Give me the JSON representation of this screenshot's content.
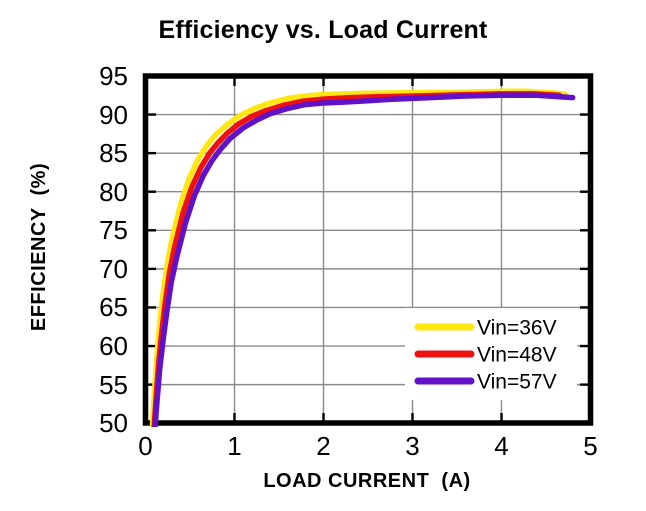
{
  "title": "Efficiency vs. Load Current",
  "colors": {
    "background": "#FFFFFF",
    "frame": "#000000",
    "grid": "#8A8A8A",
    "tick": "#000000",
    "text": "#000000",
    "legend_bg": "#FFFFFF"
  },
  "chart_data": {
    "type": "line",
    "title": "Efficiency vs. Load Current",
    "xlabel": "LOAD CURRENT  (A)",
    "ylabel": "EFFICIENCY  (%)",
    "xlim": [
      0,
      5
    ],
    "ylim": [
      50,
      95
    ],
    "xticks": [
      0,
      1,
      2,
      3,
      4,
      5
    ],
    "yticks": [
      95,
      90,
      85,
      80,
      75,
      70,
      65,
      60,
      55,
      50
    ],
    "grid": true,
    "legend": {
      "position": "inside-lower-right",
      "items": [
        "Vin=36V",
        "Vin=48V",
        "Vin=57V"
      ]
    },
    "series": [
      {
        "name": "Vin=36V",
        "color": "#FFE70F",
        "points": [
          [
            0.08,
            50
          ],
          [
            0.1,
            54
          ],
          [
            0.13,
            59
          ],
          [
            0.16,
            63
          ],
          [
            0.2,
            67
          ],
          [
            0.25,
            71
          ],
          [
            0.3,
            74
          ],
          [
            0.4,
            78.6
          ],
          [
            0.5,
            82
          ],
          [
            0.6,
            84.4
          ],
          [
            0.7,
            86.2
          ],
          [
            0.8,
            87.5
          ],
          [
            0.9,
            88.5
          ],
          [
            1.0,
            89.4
          ],
          [
            1.1,
            90.1
          ],
          [
            1.25,
            90.9
          ],
          [
            1.4,
            91.5
          ],
          [
            1.6,
            92.1
          ],
          [
            1.8,
            92.4
          ],
          [
            2.0,
            92.6
          ],
          [
            2.25,
            92.7
          ],
          [
            2.5,
            92.75
          ],
          [
            3.0,
            92.85
          ],
          [
            3.5,
            92.9
          ],
          [
            4.0,
            93.0
          ],
          [
            4.3,
            93.0
          ],
          [
            4.6,
            92.8
          ],
          [
            4.72,
            92.6
          ]
        ]
      },
      {
        "name": "Vin=48V",
        "color": "#EE1111",
        "points": [
          [
            0.1,
            50
          ],
          [
            0.12,
            53.5
          ],
          [
            0.15,
            58
          ],
          [
            0.18,
            61.5
          ],
          [
            0.22,
            65.5
          ],
          [
            0.27,
            69.5
          ],
          [
            0.32,
            72.5
          ],
          [
            0.42,
            77.2
          ],
          [
            0.52,
            80.6
          ],
          [
            0.62,
            83.1
          ],
          [
            0.72,
            85
          ],
          [
            0.82,
            86.4
          ],
          [
            0.92,
            87.6
          ],
          [
            1.05,
            88.8
          ],
          [
            1.2,
            89.8
          ],
          [
            1.35,
            90.5
          ],
          [
            1.55,
            91.2
          ],
          [
            1.75,
            91.7
          ],
          [
            2.0,
            92.0
          ],
          [
            2.3,
            92.2
          ],
          [
            2.6,
            92.3
          ],
          [
            3.0,
            92.4
          ],
          [
            3.5,
            92.55
          ],
          [
            4.0,
            92.7
          ],
          [
            4.35,
            92.7
          ],
          [
            4.65,
            92.5
          ]
        ]
      },
      {
        "name": "Vin=57V",
        "color": "#6112C8",
        "points": [
          [
            0.11,
            50
          ],
          [
            0.13,
            53
          ],
          [
            0.16,
            57
          ],
          [
            0.2,
            61
          ],
          [
            0.24,
            64.5
          ],
          [
            0.29,
            68.3
          ],
          [
            0.35,
            71.5
          ],
          [
            0.45,
            76
          ],
          [
            0.55,
            79.5
          ],
          [
            0.65,
            82.1
          ],
          [
            0.75,
            84.1
          ],
          [
            0.85,
            85.6
          ],
          [
            0.95,
            86.9
          ],
          [
            1.1,
            88.3
          ],
          [
            1.25,
            89.3
          ],
          [
            1.4,
            90.1
          ],
          [
            1.6,
            90.8
          ],
          [
            1.8,
            91.3
          ],
          [
            2.0,
            91.5
          ],
          [
            2.2,
            91.6
          ],
          [
            2.5,
            91.8
          ],
          [
            2.8,
            92.0
          ],
          [
            3.2,
            92.2
          ],
          [
            3.6,
            92.4
          ],
          [
            4.0,
            92.5
          ],
          [
            4.4,
            92.5
          ],
          [
            4.8,
            92.2
          ]
        ]
      }
    ]
  }
}
